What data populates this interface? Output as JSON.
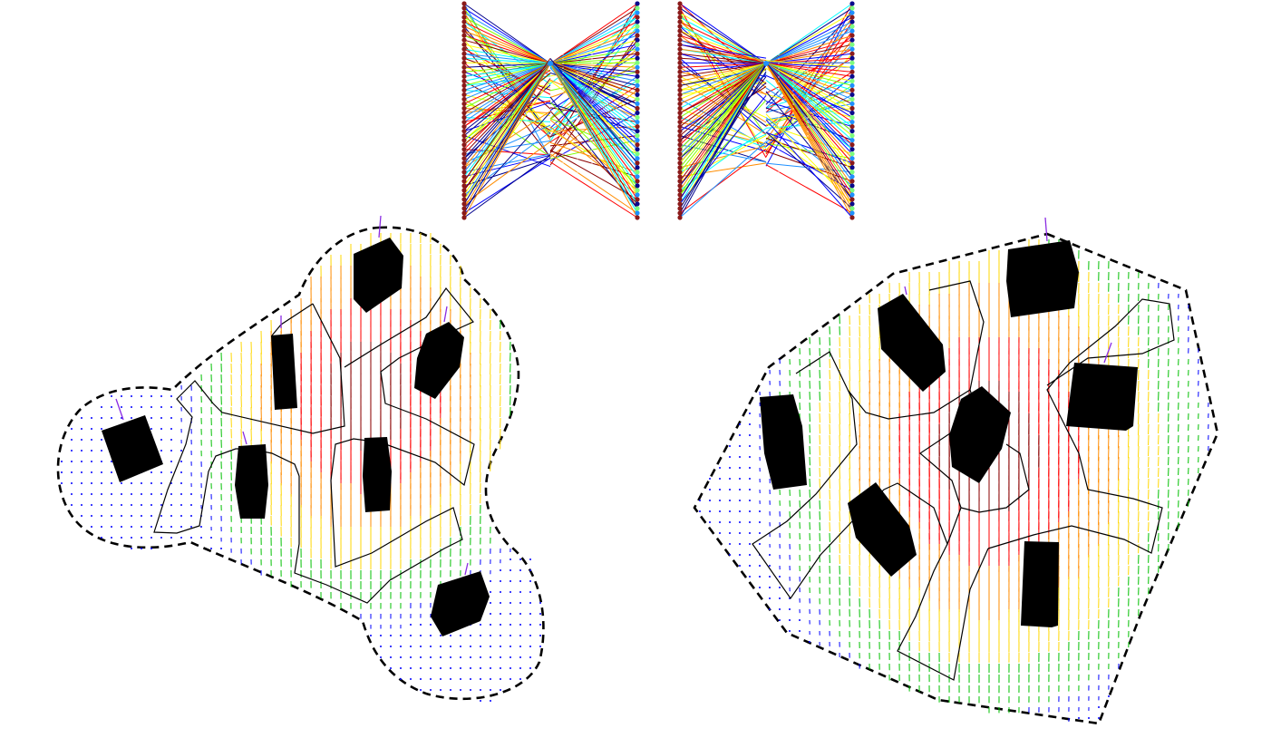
{
  "figure": {
    "panels": [
      {
        "id": "bipartite-graph-a",
        "type": "bipartite-graph",
        "left_nodes": 48,
        "right_nodes": 48,
        "hub_count": 1,
        "left_node_color": "#8b1a1a",
        "right_node_colors": [
          "#0a0a8c",
          "#7cfc7c",
          "#1e90ff",
          "#8b1a1a"
        ],
        "edge_colormap": [
          "#00008b",
          "#0000ff",
          "#1e90ff",
          "#00ffff",
          "#7fff00",
          "#ffff00",
          "#ff8c00",
          "#ff0000",
          "#8b0000"
        ]
      },
      {
        "id": "bipartite-graph-b",
        "type": "bipartite-graph",
        "left_nodes": 48,
        "right_nodes": 48,
        "hub_count": 1,
        "left_node_color": "#8b1a1a",
        "right_node_colors": [
          "#0a0a8c",
          "#7cfc7c",
          "#1e90ff",
          "#8b1a1a"
        ],
        "edge_colormap": [
          "#00008b",
          "#0000ff",
          "#1e90ff",
          "#00ffff",
          "#7fff00",
          "#ffff00",
          "#ff8c00",
          "#ff0000",
          "#8b0000"
        ]
      },
      {
        "id": "vector-field-a",
        "type": "vector-field-map",
        "boundary_style": "dashed",
        "obstacle_count": 7,
        "obstacle_color": "#000000",
        "region_outline_color": "#000000",
        "heading_marker_color": "#8a2be2",
        "arrow_colormap": [
          "#0000ff",
          "#00c000",
          "#ffd700",
          "#ff8c00",
          "#ff0000",
          "#8b0000"
        ]
      },
      {
        "id": "vector-field-b",
        "type": "vector-field-map",
        "boundary_style": "dashed",
        "obstacle_count": 7,
        "obstacle_color": "#000000",
        "region_outline_color": "#000000",
        "heading_marker_color": "#8a2be2",
        "arrow_colormap": [
          "#0000ff",
          "#00c000",
          "#ffd700",
          "#ff8c00",
          "#ff0000",
          "#8b0000"
        ]
      }
    ]
  }
}
